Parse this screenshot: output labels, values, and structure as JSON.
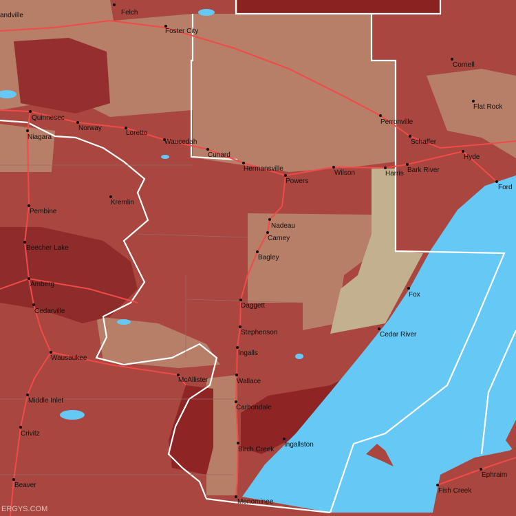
{
  "places": [
    "andville",
    "Felch",
    "Foster City",
    "Quinnesec",
    "Norway",
    "Loretto",
    "Niagara",
    "Waucedah",
    "Cunard",
    "Hermansville",
    "Powers",
    "Wilson",
    "Harris",
    "Bark River",
    "Hyde",
    "Perronville",
    "Schaffer",
    "Cornell",
    "Flat Rock",
    "Ford",
    "Kremlin",
    "Pembine",
    "Nadeau",
    "Carney",
    "Bagley",
    "Beecher Lake",
    "Amberg",
    "Cedarville",
    "Daggett",
    "Fox",
    "Stephenson",
    "Cedar River",
    "Ingalls",
    "Wausaukee",
    "McAllister",
    "Wallace",
    "Middle Inlet",
    "Carbondale",
    "Crivitz",
    "Ingallston",
    "Birch Creek",
    "Beaver",
    "Menominee",
    "Ephraim",
    "Fish Creek"
  ],
  "watermark": "ERGYS.COM"
}
